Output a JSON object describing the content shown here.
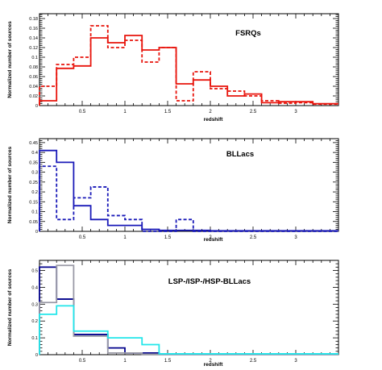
{
  "chart_data": [
    {
      "type": "histogram-step",
      "title": "FSRQs",
      "xlabel": "redshift",
      "ylabel": "Normalized number of sources",
      "xlim": [
        0,
        3.5
      ],
      "ylim": [
        0,
        0.19
      ],
      "xticks": [
        0.5,
        1,
        1.5,
        2,
        2.5,
        3
      ],
      "xtick_labels": [
        "0.5",
        "1",
        "1.5",
        "2",
        "2.5",
        "3"
      ],
      "yticks": [
        0.02,
        0.04,
        0.06,
        0.08,
        0.1,
        0.12,
        0.14,
        0.16,
        0.18
      ],
      "ytick_labels": [
        "0.02",
        "0.04",
        "0.06",
        "0.08",
        "0.1",
        "0.12",
        "0.14",
        "0.16",
        "0.18"
      ],
      "bin_edges": [
        0,
        0.2,
        0.4,
        0.6,
        0.8,
        1.0,
        1.2,
        1.4,
        1.6,
        1.8,
        2.0,
        2.2,
        2.4,
        2.6,
        2.8,
        3.0,
        3.2,
        3.5
      ],
      "series": [
        {
          "style": "solid",
          "color": "#e8140c",
          "values": [
            0.01,
            0.077,
            0.082,
            0.14,
            0.13,
            0.145,
            0.115,
            0.12,
            0.045,
            0.053,
            0.04,
            0.02,
            0.024,
            0.006,
            0.008,
            0.008,
            0.004
          ]
        },
        {
          "style": "dashed",
          "color": "#e8140c",
          "values": [
            0.04,
            0.085,
            0.1,
            0.165,
            0.12,
            0.135,
            0.09,
            0.12,
            0.01,
            0.07,
            0.035,
            0.03,
            0.02,
            0.01,
            0.005,
            0.006,
            0.003
          ]
        }
      ]
    },
    {
      "type": "histogram-step",
      "title": "BLLacs",
      "xlabel": "redshift",
      "ylabel": "Normalized number of sources",
      "xlim": [
        0,
        3.5
      ],
      "ylim": [
        0,
        0.47
      ],
      "xticks": [
        0.5,
        1,
        1.5,
        2,
        2.5,
        3
      ],
      "xtick_labels": [
        "0.5",
        "1",
        "1.5",
        "2",
        "2.5",
        "3"
      ],
      "yticks": [
        0.05,
        0.1,
        0.15,
        0.2,
        0.25,
        0.3,
        0.35,
        0.4,
        0.45
      ],
      "ytick_labels": [
        "0.05",
        "0.1",
        "0.15",
        "0.2",
        "0.25",
        "0.3",
        "0.35",
        "0.4",
        "0.45"
      ],
      "bin_edges": [
        0,
        0.2,
        0.4,
        0.6,
        0.8,
        1.0,
        1.2,
        1.4,
        1.6,
        1.8,
        2.0,
        2.2,
        2.4,
        2.6,
        2.8,
        3.0,
        3.2,
        3.5
      ],
      "series": [
        {
          "style": "solid",
          "color": "#1a1ab8",
          "values": [
            0.41,
            0.35,
            0.13,
            0.06,
            0.03,
            0.03,
            0.01,
            0.005,
            0.005,
            0.005,
            0.003,
            0.003,
            0.003,
            0.003,
            0.003,
            0.003,
            0.003
          ]
        },
        {
          "style": "dashed",
          "color": "#1a1ab8",
          "values": [
            0.33,
            0.06,
            0.17,
            0.225,
            0.08,
            0.06,
            0.0,
            0.0,
            0.06,
            0.0,
            0.0,
            0.0,
            0.0,
            0.0,
            0.0,
            0.0,
            0.0
          ]
        }
      ]
    },
    {
      "type": "histogram-step",
      "title": "LSP-/ISP-/HSP-BLLacs",
      "xlabel": "redshift",
      "ylabel": "Normalized number of sources",
      "xlim": [
        0,
        3.5
      ],
      "ylim": [
        0,
        0.56
      ],
      "xticks": [
        0.5,
        1,
        1.5,
        2,
        2.5,
        3
      ],
      "xtick_labels": [
        "0.5",
        "1",
        "1.5",
        "2",
        "2.5",
        "3"
      ],
      "yticks": [
        0.1,
        0.2,
        0.3,
        0.4,
        0.5
      ],
      "ytick_labels": [
        "0.1",
        "0.2",
        "0.3",
        "0.4",
        "0.5"
      ],
      "bin_edges": [
        0,
        0.2,
        0.4,
        0.6,
        0.8,
        1.0,
        1.2,
        1.4,
        1.6,
        1.8,
        2.0,
        2.2,
        2.4,
        2.6,
        2.8,
        3.0,
        3.2,
        3.5
      ],
      "series": [
        {
          "style": "solid",
          "color": "#00008b",
          "values": [
            0.52,
            0.33,
            0.12,
            0.12,
            0.04,
            0.01,
            0.01,
            0.003,
            0.003,
            0.003,
            0.003,
            0.003,
            0.003,
            0.003,
            0.003,
            0.003,
            0.003
          ]
        },
        {
          "style": "solid",
          "color": "#9a9aa6",
          "values": [
            0.31,
            0.53,
            0.11,
            0.11,
            0.01,
            0.01,
            0.003,
            0.003,
            0.003,
            0.003,
            0.003,
            0.003,
            0.003,
            0.003,
            0.003,
            0.003,
            0.003
          ]
        },
        {
          "style": "solid",
          "color": "#22e6ea",
          "values": [
            0.24,
            0.29,
            0.14,
            0.14,
            0.1,
            0.1,
            0.06,
            0.005,
            0.005,
            0.005,
            0.005,
            0.005,
            0.005,
            0.005,
            0.005,
            0.005,
            0.005
          ]
        }
      ]
    }
  ]
}
